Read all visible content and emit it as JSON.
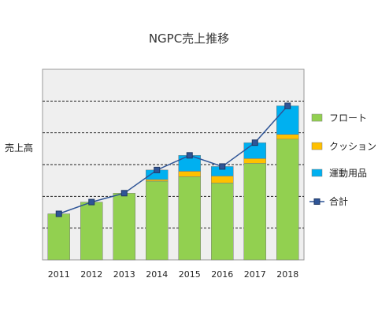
{
  "chart_data": {
    "type": "bar",
    "stacked": true,
    "title": "NGPC売上推移",
    "ylabel": "売上高",
    "xlabel": "",
    "categories": [
      "2011",
      "2012",
      "2013",
      "2014",
      "2015",
      "2016",
      "2017",
      "2018"
    ],
    "ylim": [
      0,
      6
    ],
    "grid": "horizontal-dashed",
    "legend_position": "right",
    "series": [
      {
        "name": "フロート",
        "type": "bar",
        "color": "#92d050",
        "values": [
          1.45,
          1.82,
          2.1,
          2.48,
          2.62,
          2.42,
          3.04,
          3.8
        ]
      },
      {
        "name": "クッション",
        "type": "bar",
        "color": "#ffc000",
        "values": [
          0,
          0,
          0,
          0.05,
          0.17,
          0.22,
          0.15,
          0.15
        ]
      },
      {
        "name": "運動用品",
        "type": "bar",
        "color": "#00b0f0",
        "values": [
          0,
          0,
          0,
          0.3,
          0.5,
          0.3,
          0.5,
          0.9
        ]
      },
      {
        "name": "合計",
        "type": "line",
        "color": "#2f5597",
        "values": [
          1.45,
          1.82,
          2.1,
          2.83,
          3.29,
          2.94,
          3.69,
          4.85
        ]
      }
    ]
  }
}
